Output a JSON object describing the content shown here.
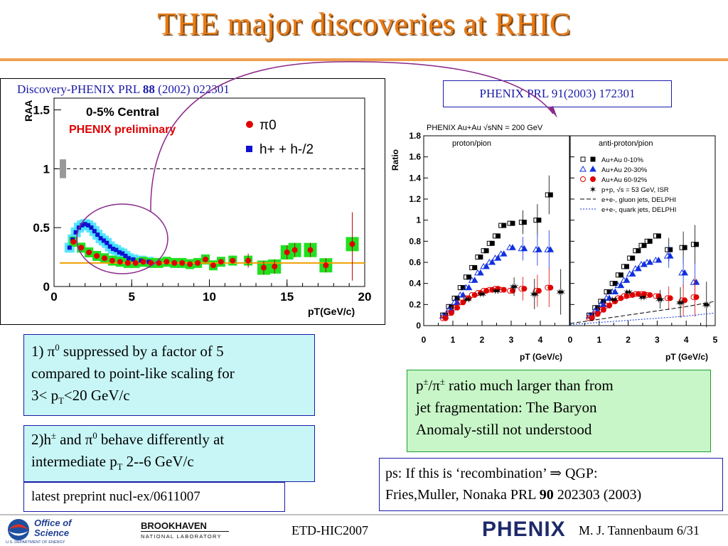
{
  "slide": {
    "title": "THE major discoveries at RHIC",
    "left_ref": {
      "pre": "Discovery-PHENIX PRL ",
      "vol": "88",
      "post": " (2002) 022301"
    },
    "right_ref": "PHENIX PRL 91(2003) 172301",
    "box1": {
      "num": "1) ",
      "pi": "π",
      "pi_sup": "0",
      "text1": " suppressed by a factor of 5",
      "line2": "compared to point-like scaling for",
      "line3_pre": "3< p",
      "line3_sub": "T",
      "line3_post": "<20 GeV/c"
    },
    "box2": {
      "pre": "2)h",
      "pm": "±",
      "mid": " and ",
      "pi": "π",
      "pi_sup": "0",
      "post": " behave differently at",
      "line2_pre": "intermediate p",
      "line2_sub": "T",
      "line2_post": " 2--6 GeV/c"
    },
    "box3": "latest preprint nucl-ex/0611007",
    "box4": {
      "p": "p",
      "pm1": "±",
      "slash": "/",
      "pi": "π",
      "pm2": "±",
      "post": " ratio much larger than from",
      "line2": "jet fragmentation: The Baryon",
      "line3": "Anomaly-still not understood"
    },
    "box5": {
      "pre": "ps: If this is ‘recombination’ ",
      "arrow": "⇒",
      "post": " QGP:",
      "line2_pre": "Fries,Muller, Nonaka PRL ",
      "line2_vol": "90",
      "line2_post": " 202303 (2003)"
    },
    "footer": {
      "doe_line1": "Office of",
      "doe_line2": "Science",
      "doe_line3": "U.S. DEPARTMENT OF ENERGY",
      "bnl_line1": "BROOKHAVEN",
      "bnl_line2": "NATIONAL LABORATORY",
      "conf": "ETD-HIC2007",
      "phenix_logo": "PHENIX",
      "author": "M. J. Tannenbaum   6/31"
    }
  },
  "colors": {
    "title": "#e87a14",
    "pi0": "#e00000",
    "hadron": "#1010d0",
    "band": "#20e020",
    "cyan_band": "#40e0ff",
    "line": "#f0a000",
    "arc": "#8a2a8a"
  },
  "chart_data": [
    {
      "type": "scatter",
      "title": "0-5% Central",
      "subtitle": "PHENIX preliminary",
      "xlabel": "pT(GeV/c)",
      "ylabel": "RAA",
      "xlim": [
        0,
        20
      ],
      "ylim": [
        0,
        1.6
      ],
      "xticks": [
        0,
        5,
        10,
        15,
        20
      ],
      "yticks": [
        0,
        0.5,
        1,
        1.5
      ],
      "reference_line": 1,
      "level_line": 0.2,
      "legend": [
        "π0",
        "h+ + h-/2"
      ],
      "series": [
        {
          "name": "π0",
          "x": [
            1.25,
            1.75,
            2.25,
            2.75,
            3.25,
            3.75,
            4.25,
            4.75,
            5.25,
            5.75,
            6.25,
            6.75,
            7.25,
            7.75,
            8.25,
            8.75,
            9.25,
            9.75,
            10.25,
            10.75,
            11.5,
            12.5,
            13.5,
            14.2,
            15.0,
            15.5,
            16.5,
            17.5,
            19.2
          ],
          "y": [
            0.38,
            0.33,
            0.29,
            0.26,
            0.24,
            0.22,
            0.21,
            0.2,
            0.2,
            0.21,
            0.2,
            0.2,
            0.21,
            0.2,
            0.2,
            0.19,
            0.2,
            0.23,
            0.18,
            0.21,
            0.22,
            0.22,
            0.16,
            0.17,
            0.29,
            0.31,
            0.31,
            0.18,
            0.36
          ]
        },
        {
          "name": "h+ + h-/2",
          "x": [
            1.0,
            1.2,
            1.4,
            1.6,
            1.8,
            2.0,
            2.2,
            2.4,
            2.6,
            2.8,
            3.0,
            3.2,
            3.4,
            3.6,
            3.8,
            4.0,
            4.2,
            4.4,
            4.6,
            4.8,
            5.1,
            5.6,
            6.1
          ],
          "y": [
            0.33,
            0.4,
            0.46,
            0.5,
            0.52,
            0.53,
            0.52,
            0.5,
            0.47,
            0.44,
            0.41,
            0.39,
            0.37,
            0.34,
            0.32,
            0.31,
            0.29,
            0.28,
            0.26,
            0.24,
            0.23,
            0.22,
            0.21
          ]
        }
      ]
    },
    {
      "type": "scatter",
      "title": "PHENIX Au+Au √sNN = 200 GeV",
      "panels": [
        "proton/pion",
        "anti-proton/pion"
      ],
      "xlabel": "pT (GeV/c)",
      "ylabel": "Ratio",
      "xlim": [
        0,
        5
      ],
      "ylim": [
        0,
        1.8
      ],
      "xticks": [
        0,
        1,
        2,
        3,
        4
      ],
      "xticks_right": [
        0,
        1,
        2,
        3,
        4,
        5
      ],
      "yticks": [
        0,
        0.2,
        0.4,
        0.6,
        0.8,
        1,
        1.2,
        1.4,
        1.6,
        1.8
      ],
      "legend": [
        "Au+Au 0-10%",
        "Au+Au 20-30%",
        "Au+Au 60-92%",
        "p+p, √s = 53 GeV, ISR",
        "e+e-, gluon jets, DELPHI",
        "e+e-, quark jets, DELPHI"
      ],
      "series": [
        {
          "name": "Au+Au 0-10%",
          "panel": "proton/pion",
          "x": [
            0.7,
            0.9,
            1.1,
            1.3,
            1.5,
            1.7,
            1.9,
            2.1,
            2.3,
            2.5,
            2.7,
            3.0,
            3.4,
            3.9,
            4.3
          ],
          "y": [
            0.1,
            0.18,
            0.26,
            0.36,
            0.46,
            0.55,
            0.65,
            0.71,
            0.78,
            0.85,
            0.95,
            0.97,
            0.98,
            1.0,
            1.24
          ]
        },
        {
          "name": "Au+Au 20-30%",
          "panel": "proton/pion",
          "x": [
            0.7,
            0.9,
            1.1,
            1.3,
            1.5,
            1.7,
            1.9,
            2.1,
            2.3,
            2.5,
            2.7,
            3.0,
            3.4,
            3.9,
            4.3
          ],
          "y": [
            0.09,
            0.15,
            0.22,
            0.29,
            0.36,
            0.43,
            0.5,
            0.56,
            0.6,
            0.64,
            0.68,
            0.74,
            0.73,
            0.72,
            0.72
          ]
        },
        {
          "name": "Au+Au 60-92%",
          "panel": "proton/pion",
          "x": [
            0.7,
            0.9,
            1.1,
            1.3,
            1.5,
            1.7,
            1.9,
            2.1,
            2.3,
            2.5,
            2.7,
            3.0,
            3.4,
            3.9,
            4.3
          ],
          "y": [
            0.07,
            0.12,
            0.17,
            0.22,
            0.26,
            0.29,
            0.31,
            0.33,
            0.34,
            0.35,
            0.34,
            0.33,
            0.35,
            0.33,
            0.36
          ]
        },
        {
          "name": "p+p, √s = 53 GeV, ISR",
          "panel": "proton/pion",
          "x": [
            1.5,
            2.0,
            2.5,
            3.1,
            3.8,
            4.7
          ],
          "y": [
            0.25,
            0.3,
            0.33,
            0.37,
            0.3,
            0.32
          ]
        },
        {
          "name": "Au+Au 0-10%",
          "panel": "anti-proton/pion",
          "x": [
            0.7,
            0.9,
            1.1,
            1.3,
            1.5,
            1.7,
            1.9,
            2.1,
            2.3,
            2.5,
            2.7,
            3.0,
            3.4,
            3.9,
            4.3
          ],
          "y": [
            0.1,
            0.17,
            0.23,
            0.32,
            0.4,
            0.48,
            0.56,
            0.64,
            0.71,
            0.76,
            0.8,
            0.85,
            0.72,
            0.74,
            0.77
          ]
        },
        {
          "name": "Au+Au 20-30%",
          "panel": "anti-proton/pion",
          "x": [
            0.7,
            0.9,
            1.1,
            1.3,
            1.5,
            1.7,
            1.9,
            2.1,
            2.3,
            2.5,
            2.7,
            3.0,
            3.4,
            3.9,
            4.3
          ],
          "y": [
            0.09,
            0.14,
            0.2,
            0.26,
            0.32,
            0.38,
            0.43,
            0.49,
            0.54,
            0.58,
            0.6,
            0.62,
            0.66,
            0.5,
            0.41
          ]
        },
        {
          "name": "Au+Au 60-92%",
          "panel": "anti-proton/pion",
          "x": [
            0.7,
            0.9,
            1.1,
            1.3,
            1.5,
            1.7,
            1.9,
            2.1,
            2.3,
            2.5,
            2.7,
            3.0,
            3.4,
            3.9,
            4.3
          ],
          "y": [
            0.07,
            0.11,
            0.15,
            0.19,
            0.23,
            0.26,
            0.28,
            0.29,
            0.3,
            0.3,
            0.29,
            0.28,
            0.26,
            0.24,
            0.27
          ]
        },
        {
          "name": "p+p, √s = 53 GeV, ISR",
          "panel": "anti-proton/pion",
          "x": [
            1.5,
            2.0,
            2.5,
            3.1,
            3.8,
            4.7
          ],
          "y": [
            0.25,
            0.32,
            0.27,
            0.25,
            0.22,
            0.2
          ]
        },
        {
          "name": "e+e-, gluon jets, DELPHI",
          "panel": "anti-proton/pion",
          "x": [
            0,
            1,
            2,
            3,
            4,
            5
          ],
          "y": [
            0.02,
            0.06,
            0.1,
            0.14,
            0.18,
            0.23
          ]
        },
        {
          "name": "e+e-, quark jets, DELPHI",
          "panel": "anti-proton/pion",
          "x": [
            0,
            1,
            2,
            3,
            4,
            5
          ],
          "y": [
            0.01,
            0.03,
            0.05,
            0.07,
            0.09,
            0.12
          ]
        }
      ]
    }
  ]
}
